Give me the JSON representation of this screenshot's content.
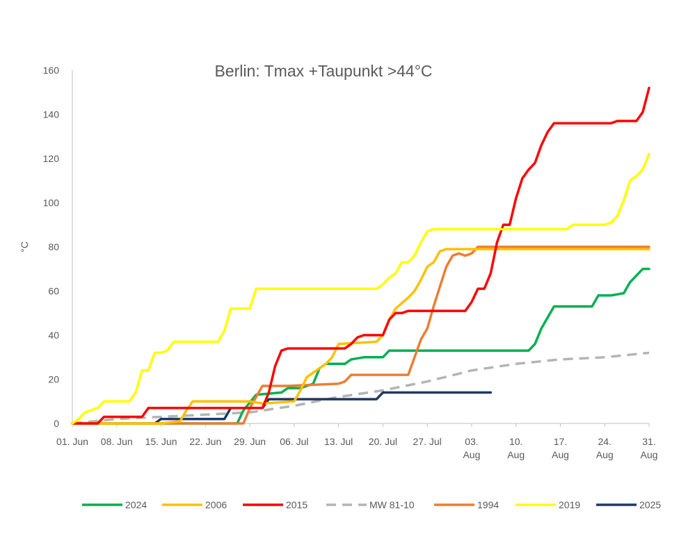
{
  "chart_data": {
    "type": "line",
    "title": "Berlin: Tmax +Taupunkt >44°C",
    "ylabel": "°C",
    "xlabel": "",
    "ylim": [
      0,
      160
    ],
    "yticks": [
      0,
      20,
      40,
      60,
      80,
      100,
      120,
      140,
      160
    ],
    "xlim": [
      0,
      91
    ],
    "xticks": [
      {
        "day": 0,
        "label": [
          "01. Jun"
        ]
      },
      {
        "day": 7,
        "label": [
          "08. Jun"
        ]
      },
      {
        "day": 14,
        "label": [
          "15. Jun"
        ]
      },
      {
        "day": 21,
        "label": [
          "22. Jun"
        ]
      },
      {
        "day": 28,
        "label": [
          "29. Jun"
        ]
      },
      {
        "day": 35,
        "label": [
          "06. Jul"
        ]
      },
      {
        "day": 42,
        "label": [
          "13. Jul"
        ]
      },
      {
        "day": 49,
        "label": [
          "20. Jul"
        ]
      },
      {
        "day": 56,
        "label": [
          "27. Jul"
        ]
      },
      {
        "day": 63,
        "label": [
          "03.",
          "Aug"
        ]
      },
      {
        "day": 70,
        "label": [
          "10.",
          "Aug"
        ]
      },
      {
        "day": 77,
        "label": [
          "17.",
          "Aug"
        ]
      },
      {
        "day": 84,
        "label": [
          "24.",
          "Aug"
        ]
      },
      {
        "day": 91,
        "label": [
          "31.",
          "Aug"
        ]
      }
    ],
    "grid": false,
    "legend_position": "bottom",
    "series": [
      {
        "name": "2024",
        "color": "#00b050",
        "dash": false,
        "x": [
          0,
          26,
          27,
          29,
          33,
          34,
          36,
          38,
          39,
          40,
          43,
          44,
          46,
          49,
          50,
          72,
          73,
          74,
          75,
          76,
          82,
          83,
          85,
          87,
          88,
          89,
          90,
          91
        ],
        "y": [
          0,
          0,
          6,
          13,
          14,
          16,
          16,
          18,
          25,
          27,
          27,
          29,
          30,
          30,
          33,
          33,
          36,
          43,
          48,
          53,
          53,
          58,
          58,
          59,
          64,
          67,
          70,
          70
        ]
      },
      {
        "name": "2006",
        "color": "#ffc000",
        "dash": false,
        "x": [
          0,
          14,
          17,
          18,
          19,
          20,
          28,
          30,
          35,
          36,
          37,
          38,
          40,
          41,
          42,
          48,
          49,
          50,
          51,
          53,
          54,
          55,
          56,
          57,
          58,
          59,
          91
        ],
        "y": [
          0,
          0,
          1,
          6,
          10,
          10,
          10,
          9,
          10,
          15,
          21,
          23,
          27,
          30,
          36,
          37,
          40,
          47,
          52,
          57,
          60,
          65,
          71,
          73,
          78,
          79,
          79
        ]
      },
      {
        "name": "2015",
        "color": "#ff0000",
        "dash": false,
        "x": [
          0,
          4,
          5,
          11,
          12,
          30,
          31,
          32,
          33,
          34,
          43,
          44,
          45,
          46,
          49,
          50,
          51,
          52,
          53,
          62,
          63,
          64,
          65,
          66,
          67,
          68,
          69,
          70,
          71,
          72,
          73,
          74,
          75,
          76,
          77,
          85,
          86,
          89,
          90,
          91
        ],
        "y": [
          0,
          0,
          3,
          3,
          7,
          7,
          14,
          26,
          33,
          34,
          34,
          36,
          39,
          40,
          40,
          47,
          50,
          50,
          51,
          51,
          55,
          61,
          61,
          68,
          82,
          90,
          90,
          102,
          111,
          115,
          118,
          126,
          132,
          136,
          136,
          136,
          137,
          137,
          141,
          152
        ]
      },
      {
        "name": "MW 81-10",
        "color": "#b4b4b4",
        "dash": true,
        "x": [
          0,
          7,
          14,
          21,
          28,
          35,
          42,
          49,
          56,
          63,
          70,
          77,
          84,
          91
        ],
        "y": [
          0,
          2,
          3,
          4,
          5,
          8,
          12,
          15,
          19,
          24,
          27,
          29,
          30,
          32
        ]
      },
      {
        "name": "1994",
        "color": "#ed7d31",
        "dash": false,
        "x": [
          0,
          27,
          28,
          30,
          34,
          42,
          43,
          44,
          53,
          54,
          55,
          56,
          57,
          58,
          59,
          60,
          61,
          62,
          63,
          64,
          65,
          91
        ],
        "y": [
          0,
          0,
          7,
          17,
          17,
          18,
          19,
          22,
          22,
          30,
          38,
          43,
          53,
          62,
          71,
          76,
          77,
          76,
          77,
          80,
          80,
          80
        ]
      },
      {
        "name": "2019",
        "color": "#ffff00",
        "dash": false,
        "x": [
          0,
          1,
          2,
          3,
          4,
          5,
          9,
          10,
          11,
          12,
          13,
          14,
          15,
          16,
          17,
          18,
          23,
          24,
          25,
          28,
          29,
          48,
          49,
          50,
          51,
          52,
          53,
          54,
          55,
          56,
          57,
          78,
          79,
          84,
          85,
          86,
          87,
          88,
          89,
          90,
          91
        ],
        "y": [
          0,
          2,
          5,
          6,
          7,
          10,
          10,
          14,
          24,
          24,
          32,
          32,
          33,
          37,
          37,
          37,
          37,
          42,
          52,
          52,
          61,
          61,
          63,
          66,
          68,
          73,
          73,
          76,
          82,
          87,
          88,
          88,
          90,
          90,
          91,
          94,
          101,
          110,
          112,
          115,
          122
        ]
      },
      {
        "name": "2025",
        "color": "#203864",
        "dash": false,
        "x": [
          0,
          13,
          14,
          24,
          25,
          30,
          31,
          48,
          49,
          66
        ],
        "y": [
          0,
          0,
          2,
          2,
          7,
          7,
          11,
          11,
          14,
          14
        ]
      }
    ]
  }
}
